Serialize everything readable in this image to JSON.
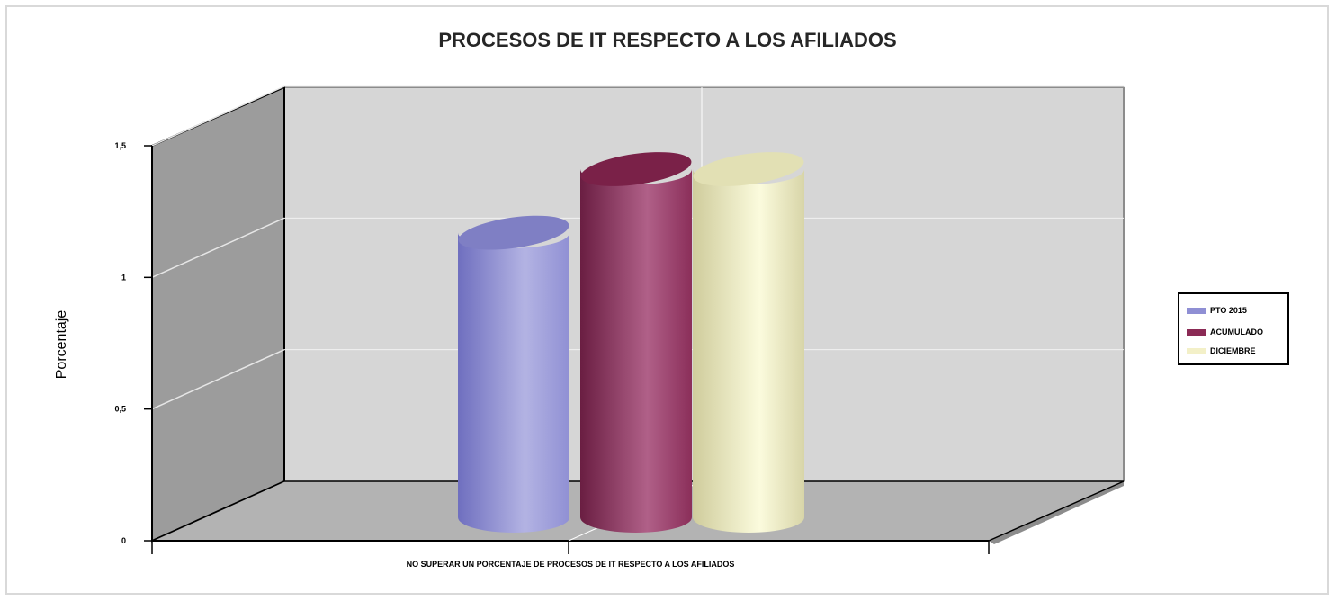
{
  "chart_data": {
    "type": "bar",
    "title": "PROCESOS DE IT RESPECTO A LOS AFILIADOS",
    "ylabel": "Porcentaje",
    "xlabel": "",
    "categories": [
      "NO SUPERAR UN PORCENTAJE DE PROCESOS DE IT RESPECTO A LOS AFILIADOS"
    ],
    "y_ticks": [
      "0",
      "0,5",
      "1",
      "1,5"
    ],
    "ylim": [
      0,
      1.5
    ],
    "grid": true,
    "legend_position": "right",
    "series": [
      {
        "name": "PTO 2015",
        "values": [
          1.12
        ],
        "color": "#8f8fd4"
      },
      {
        "name": "ACUMULADO",
        "values": [
          1.37
        ],
        "color": "#8b2a55"
      },
      {
        "name": "DICIEMBRE",
        "values": [
          1.37
        ],
        "color": "#f3f0c8"
      }
    ]
  }
}
